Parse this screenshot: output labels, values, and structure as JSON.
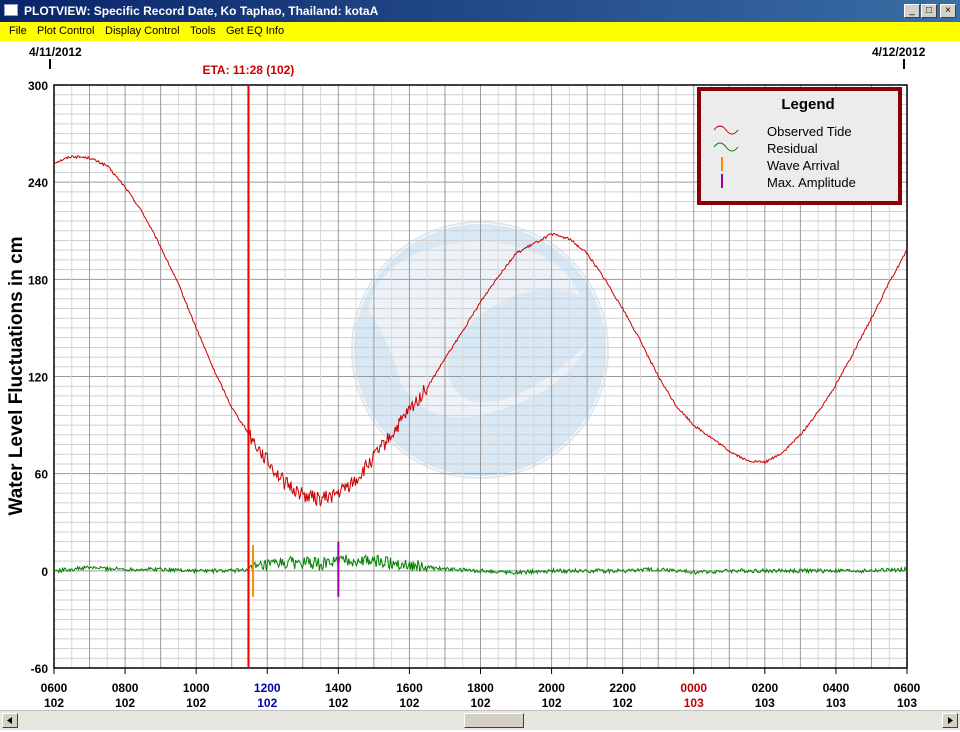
{
  "window": {
    "title": "PLOTVIEW: Specific Record Date, Ko Taphao, Thailand: kotaA",
    "controls": {
      "minimize": "_",
      "maximize": "□",
      "close": "×"
    }
  },
  "menu": [
    "File",
    "Plot Control",
    "Display Control",
    "Tools",
    "Get EQ Info"
  ],
  "chart_data": {
    "type": "line",
    "ylabel": "Water Level Fluctuations in cm",
    "ylim": [
      -60,
      300
    ],
    "yticks": [
      -60,
      0,
      60,
      120,
      180,
      240,
      300
    ],
    "date_start": "4/11/2012",
    "date_end": "4/12/2012",
    "eta_label": "ETA: 11:28 (102)",
    "x_ticks": [
      {
        "time": "0600",
        "day": "102",
        "color": "#000000"
      },
      {
        "time": "0800",
        "day": "102",
        "color": "#000000"
      },
      {
        "time": "1000",
        "day": "102",
        "color": "#000000"
      },
      {
        "time": "1200",
        "day": "102",
        "color": "#0000b0"
      },
      {
        "time": "1400",
        "day": "102",
        "color": "#000000"
      },
      {
        "time": "1600",
        "day": "102",
        "color": "#000000"
      },
      {
        "time": "1800",
        "day": "102",
        "color": "#000000"
      },
      {
        "time": "2000",
        "day": "102",
        "color": "#000000"
      },
      {
        "time": "2200",
        "day": "102",
        "color": "#000000"
      },
      {
        "time": "0000",
        "day": "103",
        "color": "#c00000"
      },
      {
        "time": "0200",
        "day": "103",
        "color": "#000000"
      },
      {
        "time": "0400",
        "day": "103",
        "color": "#000000"
      },
      {
        "time": "0600",
        "day": "103",
        "color": "#000000"
      }
    ],
    "legend": {
      "title": "Legend",
      "entries": [
        {
          "label": "Observed Tide",
          "color": "#cc0000",
          "kind": "wave"
        },
        {
          "label": "Residual",
          "color": "#008000",
          "kind": "wave"
        },
        {
          "label": "Wave Arrival",
          "color": "#ff8c00",
          "kind": "bar"
        },
        {
          "label": "Max. Amplitude",
          "color": "#9900aa",
          "kind": "bar"
        }
      ],
      "placement": "top-right"
    },
    "grid": true,
    "series": [
      {
        "name": "Observed Tide",
        "color": "#cc0000",
        "x_hours": [
          6.0,
          6.5,
          7.0,
          7.5,
          8.0,
          8.5,
          9.0,
          9.5,
          10.0,
          10.5,
          11.0,
          11.5,
          12.0,
          12.5,
          13.0,
          13.5,
          14.0,
          14.5,
          15.0,
          15.5,
          16.0,
          16.5,
          17.0,
          17.5,
          18.0,
          18.5,
          19.0,
          19.5,
          20.0,
          20.5,
          21.0,
          21.5,
          22.0,
          22.5,
          23.0,
          23.5,
          24.0,
          24.5,
          25.0,
          25.5,
          26.0,
          26.5,
          27.0,
          27.5,
          28.0,
          28.5,
          29.0,
          29.5,
          30.0
        ],
        "values": [
          252,
          256,
          255,
          250,
          237,
          221,
          200,
          177,
          150,
          124,
          101,
          84,
          68,
          54,
          47,
          44,
          48,
          56,
          70,
          84,
          99,
          113,
          131,
          148,
          166,
          182,
          196,
          202,
          208,
          205,
          196,
          180,
          162,
          142,
          120,
          102,
          90,
          82,
          74,
          68,
          67,
          73,
          84,
          98,
          115,
          135,
          156,
          178,
          198
        ]
      },
      {
        "name": "Residual",
        "color": "#008000",
        "x_hours": [
          6.0,
          7.0,
          8.0,
          9.0,
          10.0,
          11.0,
          11.5,
          12.0,
          12.5,
          13.0,
          13.5,
          14.0,
          14.5,
          15.0,
          15.5,
          16.0,
          16.5,
          17.0,
          18.0,
          19.0,
          20.0,
          21.0,
          22.0,
          23.0,
          24.0,
          25.0,
          26.0,
          27.0,
          28.0,
          29.0,
          30.0
        ],
        "values": [
          0,
          2,
          1,
          1,
          0,
          0,
          1,
          3,
          5,
          5,
          4,
          6,
          6,
          6,
          5,
          4,
          2,
          1,
          0,
          -1,
          0,
          0,
          0,
          1,
          -1,
          0,
          0,
          0,
          0,
          0,
          1
        ]
      }
    ],
    "eta_hours": 11.47,
    "wave_arrival": {
      "x_hours": 11.6,
      "color": "#ff8c00"
    },
    "max_amplitude": {
      "x_hours": 14.0,
      "color": "#9900aa"
    }
  }
}
